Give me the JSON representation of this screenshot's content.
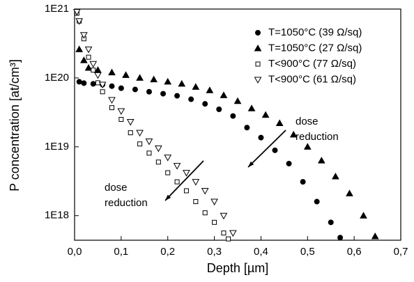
{
  "chart_data": {
    "type": "scatter",
    "x_label": "Depth [µm]",
    "y_label": "P concentration [at/cm³]",
    "ylog": true,
    "xlim": [
      0,
      0.7
    ],
    "ylim": [
      4.4e+17,
      1e+21
    ],
    "xticks": [
      {
        "value": 0,
        "label": "0,0"
      },
      {
        "value": 0.1,
        "label": "0,1"
      },
      {
        "value": 0.2,
        "label": "0,2"
      },
      {
        "value": 0.3,
        "label": "0,3"
      },
      {
        "value": 0.4,
        "label": "0,4"
      },
      {
        "value": 0.5,
        "label": "0,5"
      },
      {
        "value": 0.6,
        "label": "0,6"
      },
      {
        "value": 0.7,
        "label": "0,7"
      }
    ],
    "yticks": [
      {
        "value": 1e+18,
        "label": "1E18"
      },
      {
        "value": 1e+19,
        "label": "1E19"
      },
      {
        "value": 1e+20,
        "label": "1E20"
      },
      {
        "value": 1e+21,
        "label": "1E21"
      }
    ],
    "legend": "top-right",
    "series": [
      {
        "name": "T=1050°C (39 Ω/sq)",
        "color": "#000000",
        "marker": "circle",
        "filled": true,
        "x": [
          0.01,
          0.02,
          0.04,
          0.06,
          0.08,
          0.1,
          0.13,
          0.16,
          0.19,
          0.22,
          0.25,
          0.28,
          0.31,
          0.34,
          0.37,
          0.4,
          0.43,
          0.46,
          0.49,
          0.52,
          0.55,
          0.57
        ],
        "values": [
          8.8e+19,
          8.4e+19,
          8.2e+19,
          8e+19,
          7.6e+19,
          7.1e+19,
          6.8e+19,
          6.3e+19,
          5.9e+19,
          5.5e+19,
          4.9e+19,
          4.2e+19,
          3.5e+19,
          2.8e+19,
          1.9e+19,
          1.36e+19,
          8.9e+18,
          5.7e+18,
          3.1e+18,
          1.6e+18,
          8e+17,
          4.8e+17
        ]
      },
      {
        "name": "T=1050°C (27 Ω/sq)",
        "color": "#000000",
        "marker": "triangle",
        "filled": true,
        "x": [
          0.01,
          0.02,
          0.03,
          0.05,
          0.08,
          0.11,
          0.14,
          0.17,
          0.2,
          0.23,
          0.26,
          0.29,
          0.32,
          0.35,
          0.38,
          0.41,
          0.44,
          0.47,
          0.5,
          0.53,
          0.56,
          0.59,
          0.62,
          0.645
        ],
        "values": [
          2.6e+20,
          1.8e+20,
          1.4e+20,
          1.3e+20,
          1.2e+20,
          1.1e+20,
          1e+20,
          9.5e+19,
          8.8e+19,
          8.2e+19,
          7.4e+19,
          6.6e+19,
          5.6e+19,
          4.6e+19,
          3.6e+19,
          2.9e+19,
          2.2e+19,
          1.5e+19,
          1e+19,
          6.3e+18,
          3.7e+18,
          2.1e+18,
          1e+18,
          5e+17
        ]
      },
      {
        "name": "T<900°C (77 Ω/sq)",
        "color": "#000000",
        "marker": "square",
        "filled": false,
        "x": [
          0.005,
          0.01,
          0.02,
          0.03,
          0.04,
          0.05,
          0.06,
          0.08,
          0.1,
          0.12,
          0.14,
          0.16,
          0.18,
          0.2,
          0.22,
          0.24,
          0.26,
          0.28,
          0.3,
          0.32,
          0.33
        ],
        "values": [
          8.7e+20,
          6.7e+20,
          3.7e+20,
          2e+20,
          1.3e+20,
          8.5e+19,
          6.3e+19,
          3.7e+19,
          2.5e+19,
          1.6e+19,
          1.1e+19,
          8.1e+18,
          6e+18,
          4.2e+18,
          3.1e+18,
          2.3e+18,
          1.6e+18,
          1.1e+18,
          8e+17,
          5.6e+17,
          4.6e+17
        ]
      },
      {
        "name": "T<900°C (61 Ω/sq)",
        "color": "#000000",
        "marker": "triangle-down",
        "filled": false,
        "x": [
          0.005,
          0.01,
          0.02,
          0.03,
          0.04,
          0.05,
          0.06,
          0.08,
          0.1,
          0.12,
          0.14,
          0.16,
          0.18,
          0.2,
          0.22,
          0.24,
          0.26,
          0.28,
          0.3,
          0.32,
          0.34
        ],
        "values": [
          9.1e+20,
          6.7e+20,
          4.2e+20,
          2.6e+20,
          1.6e+20,
          1.1e+20,
          8e+19,
          4.8e+19,
          3.3e+19,
          2.3e+19,
          1.6e+19,
          1.2e+19,
          9.5e+18,
          7e+18,
          5.3e+18,
          4.2e+18,
          3.1e+18,
          2.3e+18,
          1.6e+18,
          1e+18,
          5.6e+17
        ]
      }
    ],
    "annotations": [
      [
        "dose",
        "reduction"
      ],
      [
        "dose",
        "reduction"
      ]
    ]
  }
}
